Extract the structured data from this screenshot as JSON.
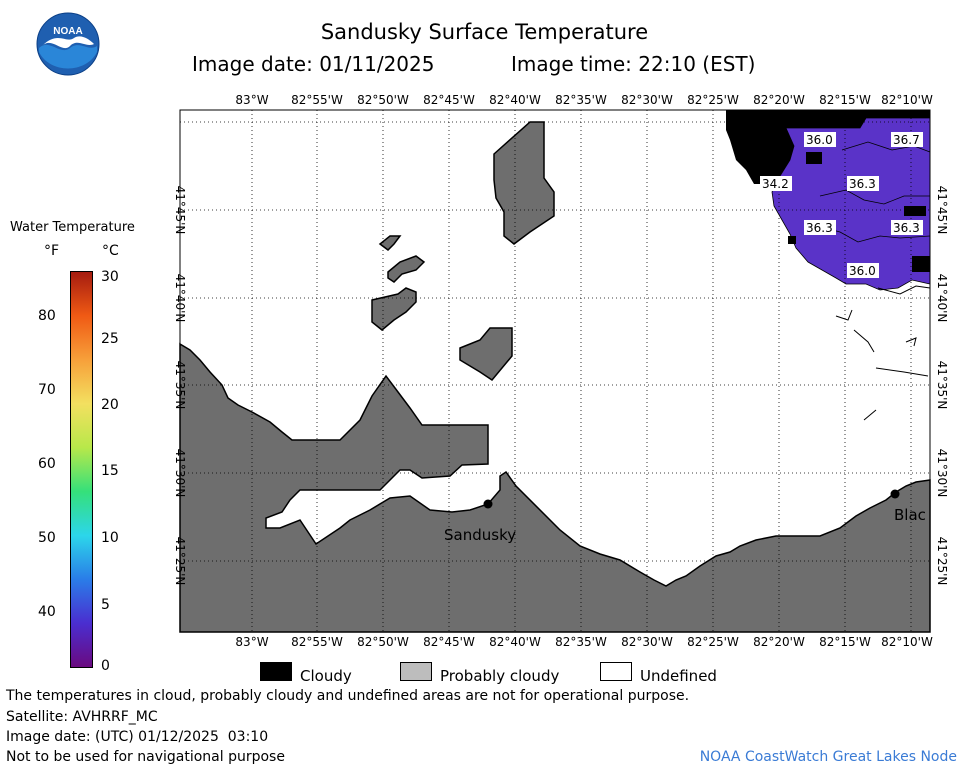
{
  "header": {
    "title": "Sandusky Surface Temperature",
    "image_date": "Image date: 01/11/2025",
    "image_time": "Image time: 22:10 (EST)"
  },
  "logo": {
    "text": "NOAA"
  },
  "legend": {
    "title": "Water Temperature",
    "unit_f": "°F",
    "unit_c": "°C",
    "f_ticks": [
      "80",
      "70",
      "60",
      "50",
      "40"
    ],
    "c_ticks": [
      "30",
      "25",
      "20",
      "15",
      "10",
      "5",
      "0"
    ],
    "c_range": [
      0,
      30
    ],
    "colors": [
      "#6a0a80",
      "#4a2ed0",
      "#2a7de8",
      "#2cd6ea",
      "#35e07a",
      "#b8e84a",
      "#f3e060",
      "#f7a03a",
      "#f05a14",
      "#a51c10"
    ]
  },
  "map": {
    "lon_labels": [
      "83°W",
      "82°55'W",
      "82°50'W",
      "82°45'W",
      "82°40'W",
      "82°35'W",
      "82°30'W",
      "82°25'W",
      "82°20'W",
      "82°15'W",
      "82°10'W"
    ],
    "lat_labels": [
      "41°45'N",
      "41°40'N",
      "41°35'N",
      "41°30'N",
      "41°25'N"
    ],
    "temperatures": [
      "36.0",
      "36.7",
      "34.2",
      "36.3",
      "36.3",
      "36.3",
      "36.0"
    ],
    "places": [
      "Sandusky",
      "Blac"
    ],
    "colors": {
      "land": "#6e6e6e",
      "cloud": "#000000",
      "water": "#5a33c8",
      "probably_cloudy": "#bdbdbd",
      "undefined": "#ffffff"
    }
  },
  "key": {
    "cloudy": "Cloudy",
    "probably_cloudy": "Probably cloudy",
    "undefined": "Undefined"
  },
  "notes": {
    "disclaimer": "The temperatures in cloud, probably cloudy and undefined areas are not for operational purpose.",
    "satellite": "Satellite: AVHRRF_MC",
    "utc_date": "Image date: (UTC) 01/12/2025  03:10",
    "navigation": "Not to be used for navigational purpose"
  },
  "credit": "NOAA CoastWatch Great Lakes Node"
}
